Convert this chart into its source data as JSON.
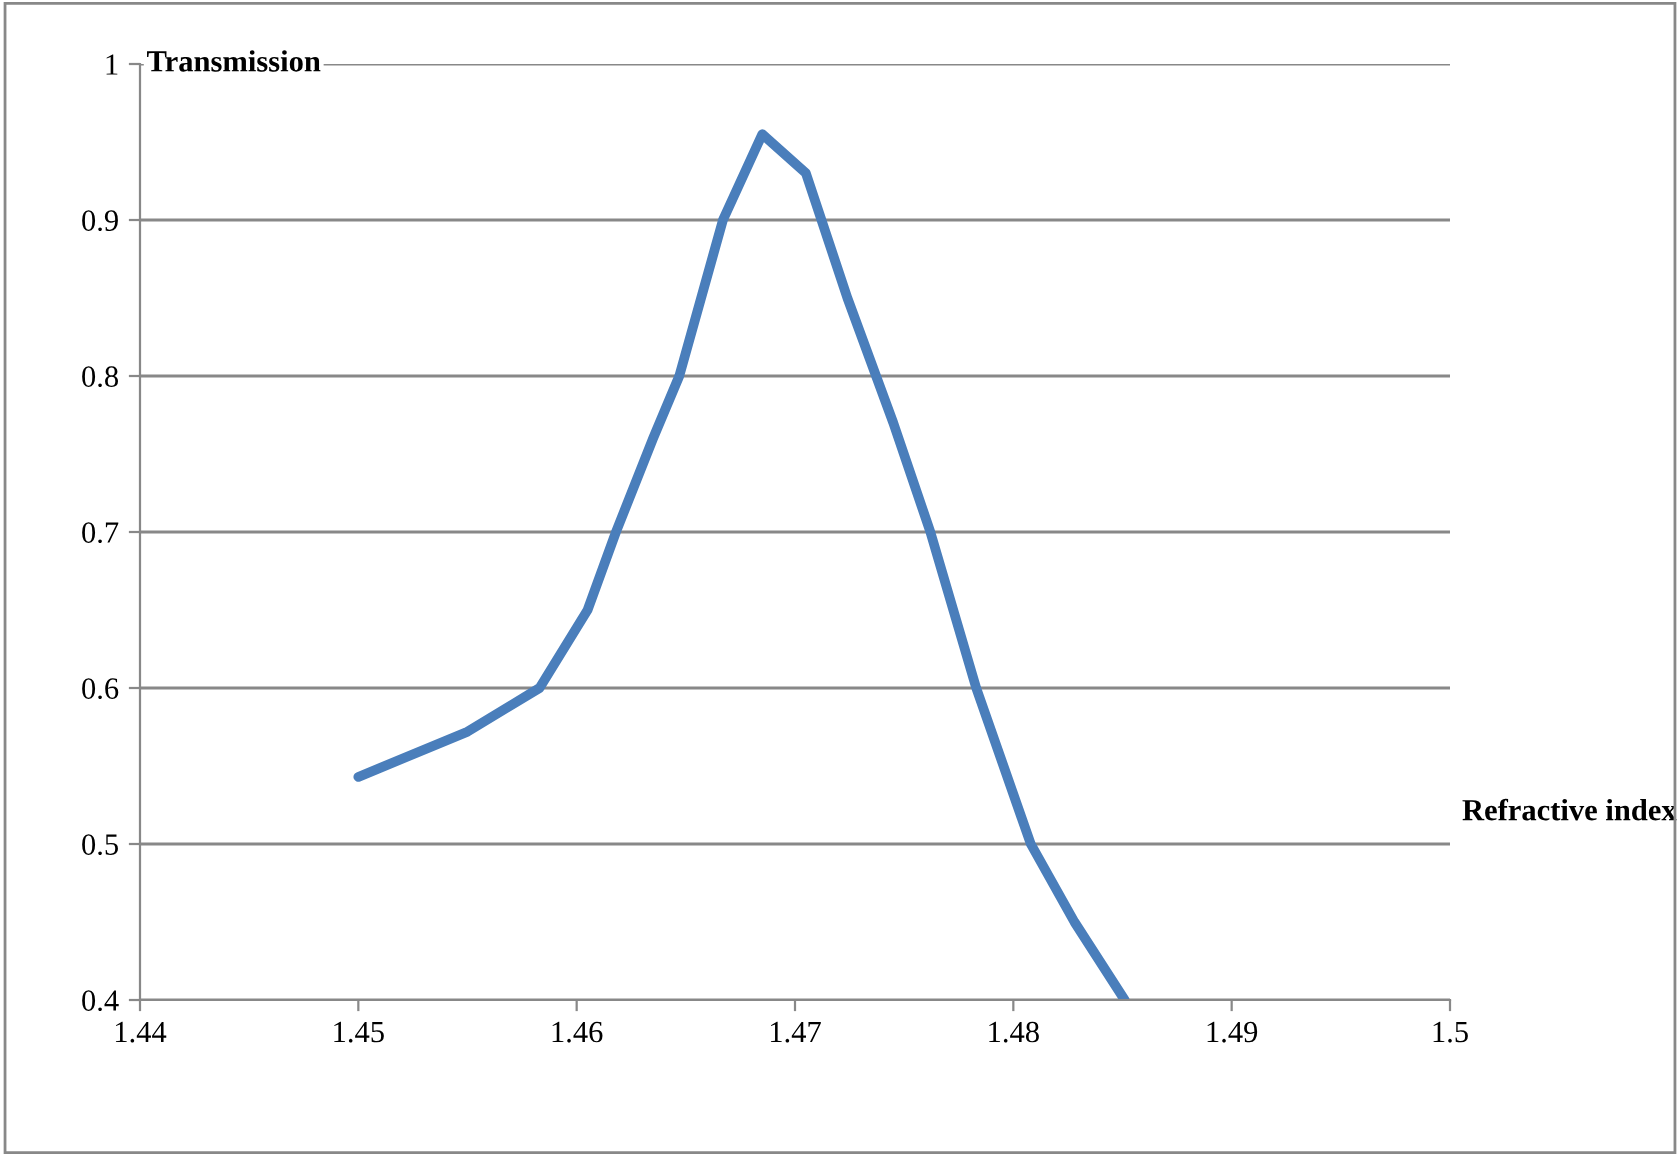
{
  "chart_data": {
    "type": "line",
    "xlabel": "Refractive index",
    "ylabel": "Transmission",
    "x": [
      1.45,
      1.455,
      1.4583,
      1.4605,
      1.4618,
      1.4635,
      1.4647,
      1.4667,
      1.4685,
      1.4705,
      1.4724,
      1.4745,
      1.4762,
      1.4783,
      1.4808,
      1.4828,
      1.4851
    ],
    "series": [
      {
        "color": "#4a7ebb",
        "values": [
          0.543,
          0.572,
          0.6,
          0.65,
          0.7,
          0.76,
          0.8,
          0.9,
          0.955,
          0.93,
          0.85,
          0.77,
          0.7,
          0.6,
          0.5,
          0.45,
          0.4
        ]
      }
    ],
    "xlim": [
      1.44,
      1.5
    ],
    "xticks": [
      1.44,
      1.45,
      1.46,
      1.47,
      1.48,
      1.49,
      1.5
    ],
    "ylim": [
      0.4,
      1
    ],
    "yticks": [
      0.4,
      0.5,
      0.6,
      0.7,
      0.8,
      0.9,
      1
    ],
    "grid": "y",
    "legend": false,
    "marker": "none",
    "line_style": "solid"
  }
}
